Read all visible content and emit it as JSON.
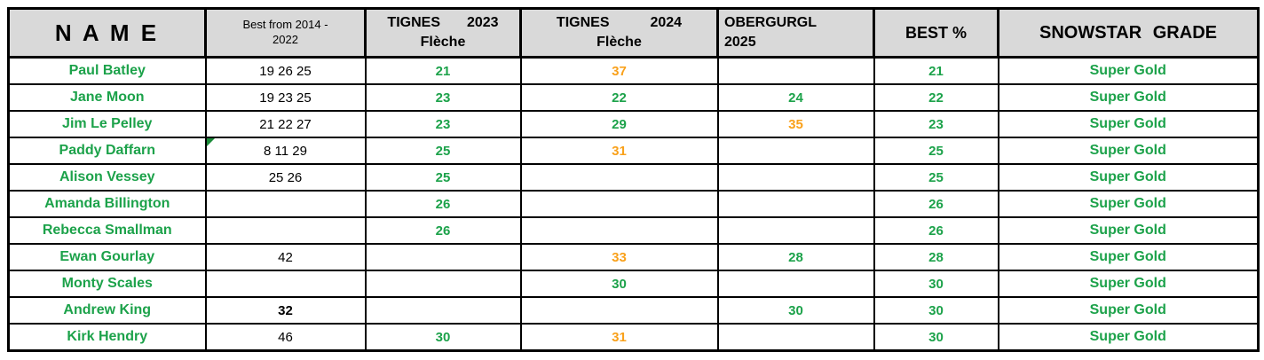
{
  "colors": {
    "green": "#1ca24a",
    "orange": "#f9a11b",
    "header_bg": "#d9d9d9",
    "note_marker_green": "#1c8c3a"
  },
  "table": {
    "header": {
      "name": "N A M E",
      "best_prev": {
        "line1": "Best from 2014 -",
        "line2": "2022"
      },
      "tignes_2023": {
        "word": "TIGNES",
        "year": "2023",
        "sub": "Flèche"
      },
      "tignes_2024": {
        "word": "TIGNES",
        "year": "2024",
        "sub": "Flèche"
      },
      "obergurgl": {
        "line1": "OBERGURGL",
        "line2": "2025"
      },
      "best_pct": "BEST %",
      "grade": "SNOWSTAR GRADE"
    },
    "rows": [
      {
        "name": "Paul Batley",
        "best_prev": "19 26 25",
        "best_prev_bold": false,
        "note_marker": false,
        "t2023": "21",
        "t2023_color": "green",
        "t2024": "37",
        "t2024_color": "orange",
        "obergurgl": "",
        "obergurgl_color": "",
        "best_pct": "21",
        "grade": "Super Gold"
      },
      {
        "name": "Jane Moon",
        "best_prev": "19 23 25",
        "best_prev_bold": false,
        "note_marker": false,
        "t2023": "23",
        "t2023_color": "green",
        "t2024": "22",
        "t2024_color": "green",
        "obergurgl": "24",
        "obergurgl_color": "green",
        "best_pct": "22",
        "grade": "Super Gold"
      },
      {
        "name": "Jim Le Pelley",
        "best_prev": "21 22 27",
        "best_prev_bold": false,
        "note_marker": false,
        "t2023": "23",
        "t2023_color": "green",
        "t2024": "29",
        "t2024_color": "green",
        "obergurgl": "35",
        "obergurgl_color": "orange",
        "best_pct": "23",
        "grade": "Super Gold"
      },
      {
        "name": "Paddy Daffarn",
        "best_prev": "8  11  29",
        "best_prev_bold": false,
        "note_marker": true,
        "t2023": "25",
        "t2023_color": "green",
        "t2024": "31",
        "t2024_color": "orange",
        "obergurgl": "",
        "obergurgl_color": "",
        "best_pct": "25",
        "grade": "Super Gold"
      },
      {
        "name": "Alison Vessey",
        "best_prev": "25 26",
        "best_prev_bold": false,
        "note_marker": false,
        "t2023": "25",
        "t2023_color": "green",
        "t2024": "",
        "t2024_color": "",
        "obergurgl": "",
        "obergurgl_color": "",
        "best_pct": "25",
        "grade": "Super Gold"
      },
      {
        "name": "Amanda Billington",
        "best_prev": "",
        "best_prev_bold": false,
        "note_marker": false,
        "t2023": "26",
        "t2023_color": "green",
        "t2024": "",
        "t2024_color": "",
        "obergurgl": "",
        "obergurgl_color": "",
        "best_pct": "26",
        "grade": "Super Gold"
      },
      {
        "name": "Rebecca Smallman",
        "best_prev": "",
        "best_prev_bold": false,
        "note_marker": false,
        "t2023": "26",
        "t2023_color": "green",
        "t2024": "",
        "t2024_color": "",
        "obergurgl": "",
        "obergurgl_color": "",
        "best_pct": "26",
        "grade": "Super Gold"
      },
      {
        "name": "Ewan Gourlay",
        "best_prev": "42",
        "best_prev_bold": false,
        "note_marker": false,
        "t2023": "",
        "t2023_color": "",
        "t2024": "33",
        "t2024_color": "orange",
        "obergurgl": "28",
        "obergurgl_color": "green",
        "best_pct": "28",
        "grade": "Super Gold"
      },
      {
        "name": "Monty Scales",
        "best_prev": "",
        "best_prev_bold": false,
        "note_marker": false,
        "t2023": "",
        "t2023_color": "",
        "t2024": "30",
        "t2024_color": "green",
        "obergurgl": "",
        "obergurgl_color": "",
        "best_pct": "30",
        "grade": "Super Gold"
      },
      {
        "name": "Andrew King",
        "best_prev": "32",
        "best_prev_bold": true,
        "note_marker": false,
        "t2023": "",
        "t2023_color": "",
        "t2024": "",
        "t2024_color": "",
        "obergurgl": "30",
        "obergurgl_color": "green",
        "best_pct": "30",
        "grade": "Super Gold"
      },
      {
        "name": "Kirk Hendry",
        "best_prev": "46",
        "best_prev_bold": false,
        "note_marker": false,
        "t2023": "30",
        "t2023_color": "green",
        "t2024": "31",
        "t2024_color": "orange",
        "obergurgl": "",
        "obergurgl_color": "",
        "best_pct": "30",
        "grade": "Super Gold"
      }
    ]
  }
}
